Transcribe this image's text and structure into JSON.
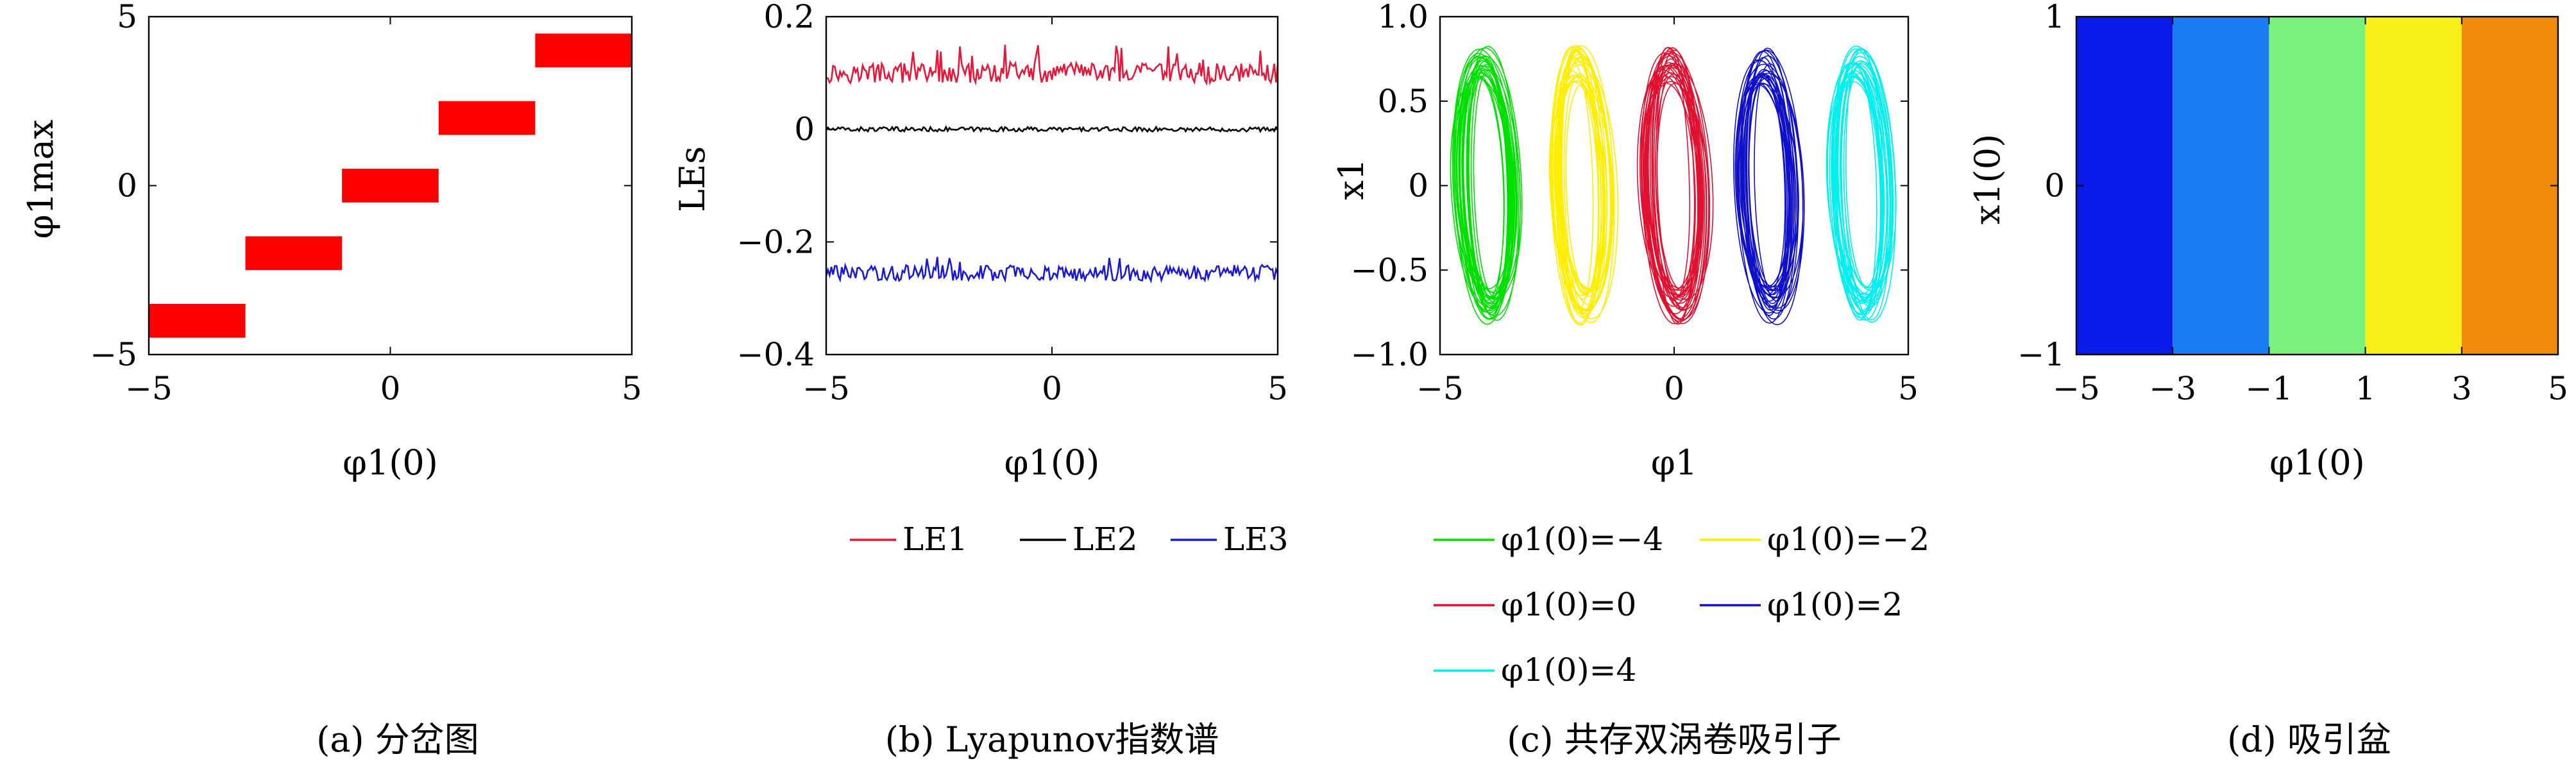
{
  "chart_data": [
    {
      "id": "a",
      "type": "bar",
      "caption": "(a) 分岔图",
      "xlabel": "φ1(0)",
      "ylabel": "φ1max",
      "xlim": [
        -5,
        5
      ],
      "ylim": [
        -5,
        5
      ],
      "xticks": [
        "−5",
        "0",
        "5"
      ],
      "yticks": [
        "5",
        "0",
        "−5"
      ],
      "grid": false,
      "color": "#ff0000",
      "segments": [
        {
          "x0": -5,
          "x1": -3,
          "y0": -4.5,
          "y1": -3.5
        },
        {
          "x0": -3,
          "x1": -1,
          "y0": -2.5,
          "y1": -1.5
        },
        {
          "x0": -1,
          "x1": 1,
          "y0": -0.5,
          "y1": 0.5
        },
        {
          "x0": 1,
          "x1": 3,
          "y0": 1.5,
          "y1": 2.5
        },
        {
          "x0": 3,
          "x1": 5,
          "y0": 3.5,
          "y1": 4.5
        }
      ]
    },
    {
      "id": "b",
      "type": "line",
      "caption": "(b) Lyapunov指数谱",
      "xlabel": "φ1(0)",
      "ylabel": "LEs",
      "xlim": [
        -5,
        5
      ],
      "ylim": [
        -0.4,
        0.2
      ],
      "xticks": [
        "−5",
        "0",
        "5"
      ],
      "yticks": [
        "0.2",
        "0",
        "−0.2",
        "−0.4"
      ],
      "grid": false,
      "legend_placement": "bottom",
      "series": [
        {
          "name": "LE1",
          "color": "#e8173a",
          "mean": 0.1,
          "amplitude": 0.018
        },
        {
          "name": "LE2",
          "color": "#000000",
          "mean": 0.0,
          "amplitude": 0.004
        },
        {
          "name": "LE3",
          "color": "#1a1ad6",
          "mean": -0.255,
          "amplitude": 0.014
        }
      ]
    },
    {
      "id": "c",
      "type": "line",
      "caption": "(c) 共存双涡卷吸引子",
      "xlabel": "φ1",
      "ylabel": "x1",
      "xlim": [
        -5,
        5
      ],
      "ylim": [
        -1.0,
        1.0
      ],
      "xticks": [
        "−5",
        "0",
        "5"
      ],
      "yticks": [
        "1.0",
        "0.5",
        "0",
        "−0.5",
        "−1.0"
      ],
      "grid": false,
      "legend_placement": "bottom",
      "series": [
        {
          "name": "φ1(0)=−4",
          "color": "#00e000",
          "center": -4,
          "halfwidth": 0.7,
          "yrange": [
            -0.83,
            0.83
          ]
        },
        {
          "name": "φ1(0)=−2",
          "color": "#ffee00",
          "center": -2,
          "halfwidth": 0.7,
          "yrange": [
            -0.83,
            0.83
          ]
        },
        {
          "name": "φ1(0)=0",
          "color": "#e01030",
          "center": 0,
          "halfwidth": 0.7,
          "yrange": [
            -0.83,
            0.83
          ]
        },
        {
          "name": "φ1(0)=2",
          "color": "#1010c8",
          "center": 2,
          "halfwidth": 0.7,
          "yrange": [
            -0.83,
            0.83
          ]
        },
        {
          "name": "φ1(0)=4",
          "color": "#00f0f0",
          "center": 4,
          "halfwidth": 0.7,
          "yrange": [
            -0.83,
            0.83
          ]
        }
      ]
    },
    {
      "id": "d",
      "type": "heatmap",
      "caption": "(d) 吸引盆",
      "xlabel": "φ1(0)",
      "ylabel": "x1(0)",
      "xlim": [
        -5,
        5
      ],
      "ylim": [
        -1,
        1
      ],
      "xticks": [
        "−5",
        "−3",
        "−1",
        "1",
        "3",
        "5"
      ],
      "yticks": [
        "1",
        "0",
        "−1"
      ],
      "grid": false,
      "regions": [
        {
          "x0": -5,
          "x1": -3,
          "color": "#0a1ae8"
        },
        {
          "x0": -3,
          "x1": -1,
          "color": "#1a7cf5"
        },
        {
          "x0": -1,
          "x1": 1,
          "color": "#7cf07c"
        },
        {
          "x0": 1,
          "x1": 3,
          "color": "#f8f018"
        },
        {
          "x0": 3,
          "x1": 5,
          "color": "#f08a0a"
        }
      ]
    }
  ]
}
